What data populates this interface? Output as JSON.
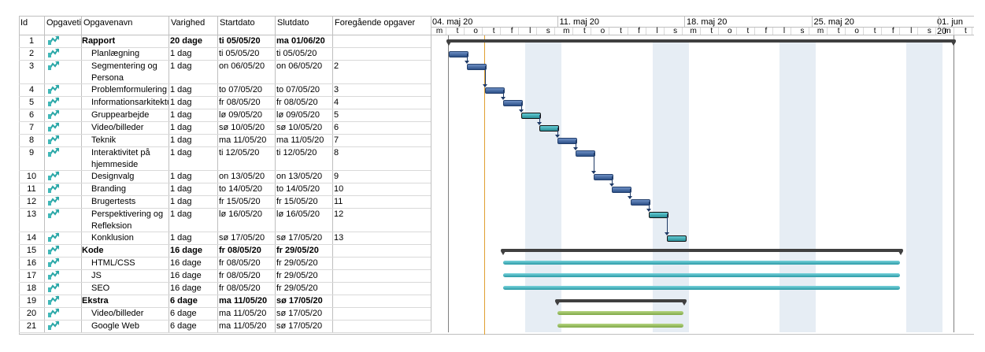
{
  "columns": {
    "id": "Id",
    "mode": "Opgavetilstand",
    "name": "Opgavenavn",
    "duration": "Varighed",
    "start": "Startdato",
    "end": "Slutdato",
    "pred": "Foregående opgaver"
  },
  "weeks": [
    "04. maj 20",
    "11. maj 20",
    "18. maj 20",
    "25. maj 20",
    "01. jun 20"
  ],
  "days": [
    "m",
    "t",
    "o",
    "t",
    "f",
    "l",
    "s",
    "m",
    "t",
    "o",
    "t",
    "f",
    "l",
    "s",
    "m",
    "t",
    "o",
    "t",
    "f",
    "l",
    "s",
    "m",
    "t",
    "o",
    "t",
    "f",
    "l",
    "s",
    "m",
    "t"
  ],
  "tasks": [
    {
      "id": "1",
      "name": "Rapport",
      "duration": "20 dage",
      "start": "ti 05/05/20",
      "end": "ma 01/06/20",
      "pred": "",
      "summary": true
    },
    {
      "id": "2",
      "name": "Planlægning",
      "duration": "1 dag",
      "start": "ti 05/05/20",
      "end": "ti 05/05/20",
      "pred": ""
    },
    {
      "id": "3",
      "name": "Segmentering og",
      "name2": "Persona",
      "duration": "1 dag",
      "start": "on 06/05/20",
      "end": "on 06/05/20",
      "pred": "2"
    },
    {
      "id": "4",
      "name": "Problemformulering",
      "duration": "1 dag",
      "start": "to 07/05/20",
      "end": "to 07/05/20",
      "pred": "3"
    },
    {
      "id": "5",
      "name": "Informationsarkitektur",
      "duration": "1 dag",
      "start": "fr 08/05/20",
      "end": "fr 08/05/20",
      "pred": "4"
    },
    {
      "id": "6",
      "name": "Gruppearbejde",
      "duration": "1 dag",
      "start": "lø 09/05/20",
      "end": "lø 09/05/20",
      "pred": "5"
    },
    {
      "id": "7",
      "name": "Video/billeder",
      "duration": "1 dag",
      "start": "sø 10/05/20",
      "end": "sø 10/05/20",
      "pred": "6"
    },
    {
      "id": "8",
      "name": "Teknik",
      "duration": "1 dag",
      "start": "ma 11/05/20",
      "end": "ma 11/05/20",
      "pred": "7"
    },
    {
      "id": "9",
      "name": "Interaktivitet på",
      "name2": "hjemmeside",
      "duration": "1 dag",
      "start": "ti 12/05/20",
      "end": "ti 12/05/20",
      "pred": "8"
    },
    {
      "id": "10",
      "name": "Designvalg",
      "duration": "1 dag",
      "start": "on 13/05/20",
      "end": "on 13/05/20",
      "pred": "9"
    },
    {
      "id": "11",
      "name": "Branding",
      "duration": "1 dag",
      "start": "to 14/05/20",
      "end": "to 14/05/20",
      "pred": "10"
    },
    {
      "id": "12",
      "name": "Brugertests",
      "duration": "1 dag",
      "start": "fr 15/05/20",
      "end": "fr 15/05/20",
      "pred": "11"
    },
    {
      "id": "13",
      "name": "Perspektivering og",
      "name2": "Refleksion",
      "duration": "1 dag",
      "start": "lø 16/05/20",
      "end": "lø 16/05/20",
      "pred": "12"
    },
    {
      "id": "14",
      "name": "Konklusion",
      "duration": "1 dag",
      "start": "sø 17/05/20",
      "end": "sø 17/05/20",
      "pred": "13"
    },
    {
      "id": "15",
      "name": "Kode",
      "duration": "16 dage",
      "start": "fr 08/05/20",
      "end": "fr 29/05/20",
      "pred": "",
      "summary": true
    },
    {
      "id": "16",
      "name": "HTML/CSS",
      "duration": "16 dage",
      "start": "fr 08/05/20",
      "end": "fr 29/05/20",
      "pred": ""
    },
    {
      "id": "17",
      "name": "JS",
      "duration": "16 dage",
      "start": "fr 08/05/20",
      "end": "fr 29/05/20",
      "pred": ""
    },
    {
      "id": "18",
      "name": "SEO",
      "duration": "16 dage",
      "start": "fr 08/05/20",
      "end": "fr 29/05/20",
      "pred": ""
    },
    {
      "id": "19",
      "name": "Ekstra",
      "duration": "6 dage",
      "start": "ma 11/05/20",
      "end": "sø 17/05/20",
      "pred": "",
      "summary": true
    },
    {
      "id": "20",
      "name": "Video/billeder",
      "duration": "6 dage",
      "start": "ma 11/05/20",
      "end": "sø 17/05/20",
      "pred": ""
    },
    {
      "id": "21",
      "name": "Google Web",
      "duration": "6 dage",
      "start": "ma 11/05/20",
      "end": "sø 17/05/20",
      "pred": ""
    }
  ],
  "colors": {
    "task": "#2b4f86",
    "critical": "#2a8e97",
    "long": "#2b9aa5",
    "green": "#7fa948",
    "summary": "#404040",
    "weekend": "#e6edf4",
    "today": "#e0a030"
  }
}
